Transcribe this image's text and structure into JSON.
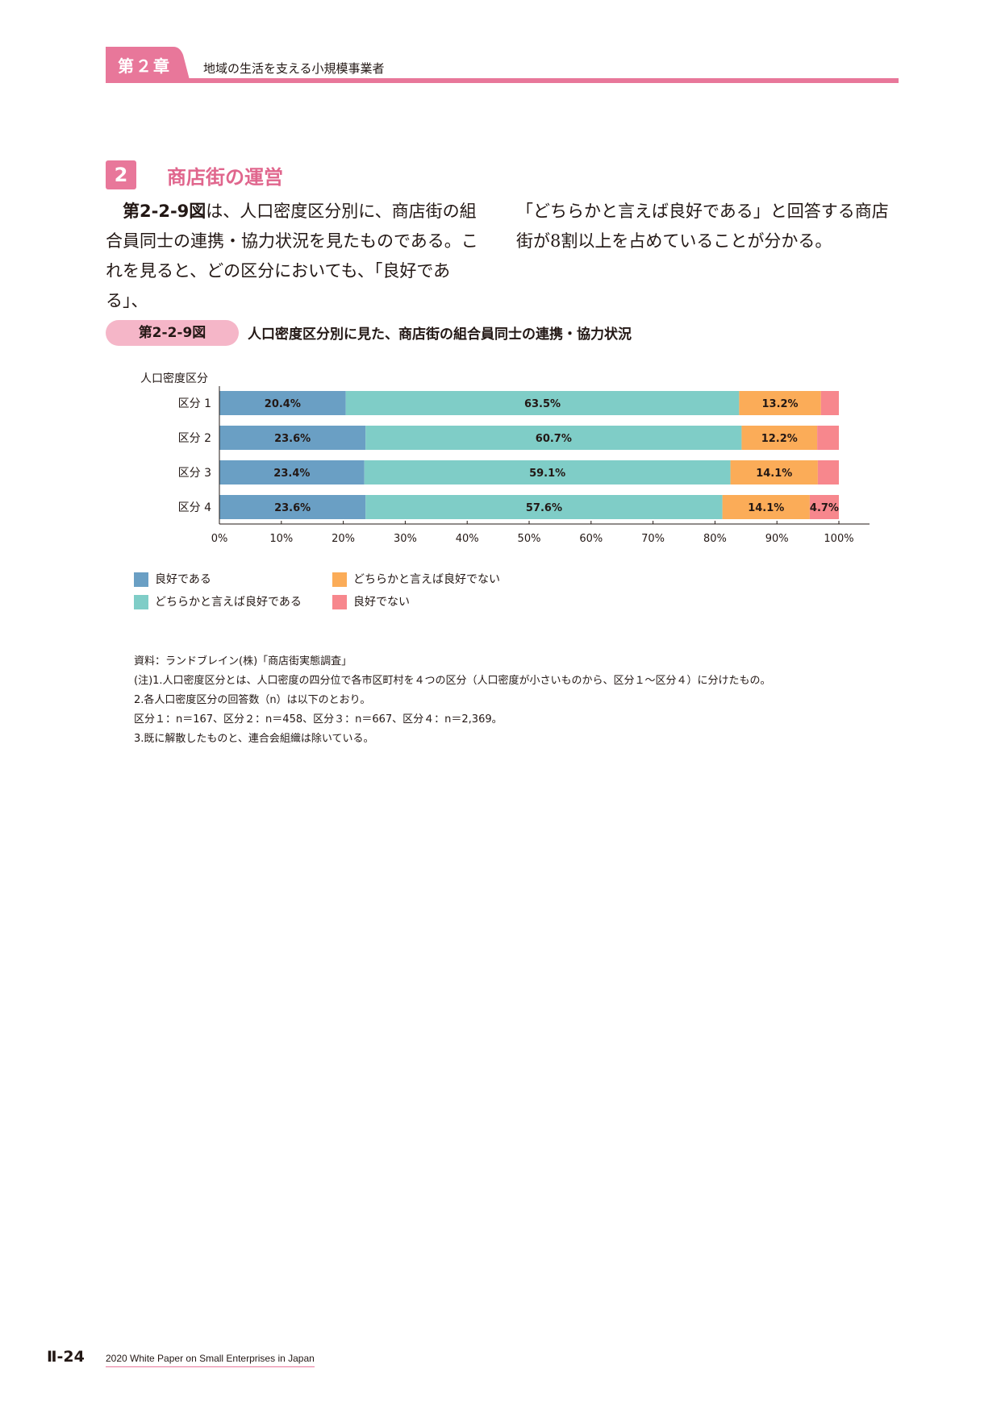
{
  "header": {
    "chapter_label": "第２章",
    "chapter_title": "地域の生活を支える小規模事業者",
    "accent_color": "#e8779a"
  },
  "section": {
    "number": "2",
    "title": "商店街の運営"
  },
  "body": {
    "left_ref": "第2-2-9図",
    "left_lines": [
      "は、人口密度区分別に、商店街の組",
      "合員同士の連携・協力状況を見たものである。こ",
      "れを見ると、どの区分においても、「良好である」、"
    ],
    "right_lines": [
      "「どちらかと言えば良好である」と回答する商店",
      "街が8割以上を占めていることが分かる。"
    ]
  },
  "figure": {
    "badge": "第2-2-9図",
    "title": "人口密度区分別に見た、商店街の組合員同士の連携・協力状況"
  },
  "chart_data": {
    "type": "bar",
    "orientation": "horizontal",
    "stacked": true,
    "category_axis_title": "人口密度区分",
    "categories": [
      "区分 1",
      "区分 2",
      "区分 3",
      "区分 4"
    ],
    "xlim": [
      0,
      100
    ],
    "x_ticks": [
      "0%",
      "10%",
      "20%",
      "30%",
      "40%",
      "50%",
      "60%",
      "70%",
      "80%",
      "90%",
      "100%"
    ],
    "series": [
      {
        "name": "良好である",
        "color": "#6a9fc4",
        "values": [
          20.4,
          23.6,
          23.4,
          23.6
        ],
        "labels": [
          "20.4%",
          "23.6%",
          "23.4%",
          "23.6%"
        ]
      },
      {
        "name": "どちらかと言えば良好である",
        "color": "#7fcdc7",
        "values": [
          63.5,
          60.7,
          59.1,
          57.6
        ],
        "labels": [
          "63.5%",
          "60.7%",
          "59.1%",
          "57.6%"
        ]
      },
      {
        "name": "どちらかと言えば良好でない",
        "color": "#fbac58",
        "values": [
          13.2,
          12.2,
          14.1,
          14.1
        ],
        "labels": [
          "13.2%",
          "12.2%",
          "14.1%",
          "14.1%"
        ]
      },
      {
        "name": "良好でない",
        "color": "#f7878d",
        "values": [
          2.9,
          3.5,
          3.4,
          4.7
        ],
        "labels": [
          "",
          "",
          "",
          "4.7%"
        ]
      }
    ],
    "legend_position": "bottom-left",
    "grid": false
  },
  "notes": [
    "資料：ランドブレイン(株)「商店街実態調査」",
    "(注)1.人口密度区分とは、人口密度の四分位で各市区町村を４つの区分（人口密度が小さいものから、区分１～区分４）に分けたもの。",
    "2.各人口密度区分の回答数（n）は以下のとおり。",
    "区分１：n＝167、区分２：n＝458、区分３：n＝667、区分４：n＝2,369。",
    "3.既に解散したものと、連合会組織は除いている。"
  ],
  "footer": {
    "page_number": "Ⅱ-24",
    "publication": "2020 White Paper on Small Enterprises in Japan"
  }
}
